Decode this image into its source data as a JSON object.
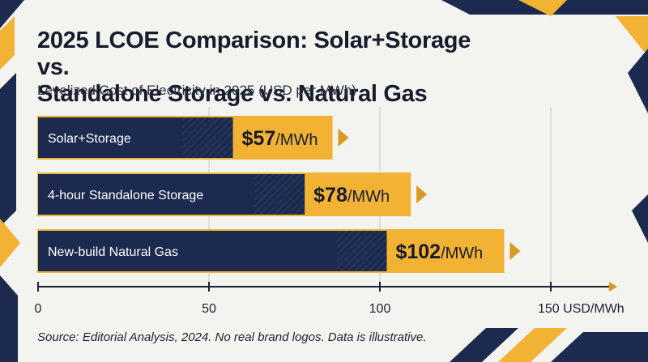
{
  "title_line1": "2025 LCOE Comparison: Solar+Storage vs.",
  "title_line2": "Standalone Storage vs. Natural Gas",
  "subtitle": "Levelized Cost of Electricity in 2025 (USD per MWh)",
  "source": "Source: Editorial Analysis, 2024. No real brand logos. Data is illustrative.",
  "colors": {
    "navy": "#1b2a4e",
    "gold": "#f2b233",
    "bg": "#f3f3ef"
  },
  "chart_data": {
    "type": "bar",
    "orientation": "horizontal",
    "categories": [
      "Solar+Storage",
      "4-hour Standalone Storage",
      "New-build Natural Gas"
    ],
    "values": [
      57,
      78,
      102
    ],
    "value_unit": "/MWh",
    "value_labels": [
      "$57",
      "$78",
      "$102"
    ],
    "xlim": [
      0,
      150
    ],
    "xticks": [
      0,
      50,
      100,
      150
    ],
    "xtick_labels": [
      "0",
      "50",
      "100",
      "150 USD/MWh"
    ],
    "grid": true
  }
}
